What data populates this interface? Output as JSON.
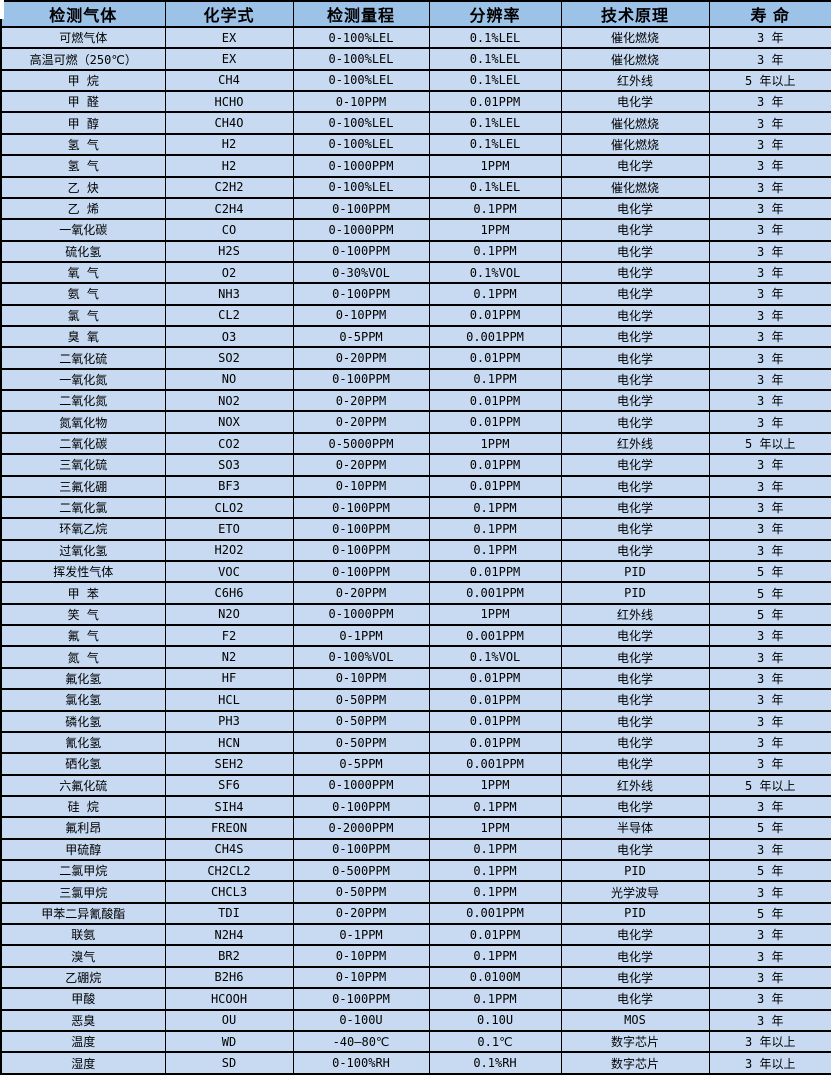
{
  "table": {
    "colors": {
      "header_bg": "#9CC2E8",
      "row_bg": "#C7DAF2",
      "border": "#000000"
    },
    "columns": [
      "检测气体",
      "化学式",
      "检测量程",
      "分辨率",
      "技术原理",
      "寿 命"
    ],
    "rows": [
      {
        "gas": "可燃气体",
        "formula": "EX",
        "range": "0-100%LEL",
        "resolution": "0.1%LEL",
        "principle": "催化燃烧",
        "lifespan": "3 年"
      },
      {
        "gas": "高温可燃（250℃）",
        "formula": "EX",
        "range": "0-100%LEL",
        "resolution": "0.1%LEL",
        "principle": "催化燃烧",
        "lifespan": "3 年"
      },
      {
        "gas": "甲 烷",
        "formula": "CH4",
        "range": "0-100%LEL",
        "resolution": "0.1%LEL",
        "principle": "红外线",
        "lifespan": "5 年以上"
      },
      {
        "gas": "甲 醛",
        "formula": "HCHO",
        "range": "0-10PPM",
        "resolution": "0.01PPM",
        "principle": "电化学",
        "lifespan": "3 年"
      },
      {
        "gas": "甲 醇",
        "formula": "CH4O",
        "range": "0-100%LEL",
        "resolution": "0.1%LEL",
        "principle": "催化燃烧",
        "lifespan": "3 年"
      },
      {
        "gas": "氢 气",
        "formula": "H2",
        "range": "0-100%LEL",
        "resolution": "0.1%LEL",
        "principle": "催化燃烧",
        "lifespan": "3 年"
      },
      {
        "gas": "氢 气",
        "formula": "H2",
        "range": "0-1000PPM",
        "resolution": "1PPM",
        "principle": "电化学",
        "lifespan": "3 年"
      },
      {
        "gas": "乙 炔",
        "formula": "C2H2",
        "range": "0-100%LEL",
        "resolution": "0.1%LEL",
        "principle": "催化燃烧",
        "lifespan": "3 年"
      },
      {
        "gas": "乙 烯",
        "formula": "C2H4",
        "range": "0-100PPM",
        "resolution": "0.1PPM",
        "principle": "电化学",
        "lifespan": "3 年"
      },
      {
        "gas": "一氧化碳",
        "formula": "CO",
        "range": "0-1000PPM",
        "resolution": "1PPM",
        "principle": "电化学",
        "lifespan": "3 年"
      },
      {
        "gas": "硫化氢",
        "formula": "H2S",
        "range": "0-100PPM",
        "resolution": "0.1PPM",
        "principle": "电化学",
        "lifespan": "3 年"
      },
      {
        "gas": "氧 气",
        "formula": "O2",
        "range": "0-30%VOL",
        "resolution": "0.1%VOL",
        "principle": "电化学",
        "lifespan": "3 年"
      },
      {
        "gas": "氨 气",
        "formula": "NH3",
        "range": "0-100PPM",
        "resolution": "0.1PPM",
        "principle": "电化学",
        "lifespan": "3 年"
      },
      {
        "gas": "氯 气",
        "formula": "CL2",
        "range": "0-10PPM",
        "resolution": "0.01PPM",
        "principle": "电化学",
        "lifespan": "3 年"
      },
      {
        "gas": "臭 氧",
        "formula": "O3",
        "range": "0-5PPM",
        "resolution": "0.001PPM",
        "principle": "电化学",
        "lifespan": "3 年"
      },
      {
        "gas": "二氧化硫",
        "formula": "SO2",
        "range": "0-20PPM",
        "resolution": "0.01PPM",
        "principle": "电化学",
        "lifespan": "3 年"
      },
      {
        "gas": "一氧化氮",
        "formula": "NO",
        "range": "0-100PPM",
        "resolution": "0.1PPM",
        "principle": "电化学",
        "lifespan": "3 年"
      },
      {
        "gas": "二氧化氮",
        "formula": "NO2",
        "range": "0-20PPM",
        "resolution": "0.01PPM",
        "principle": "电化学",
        "lifespan": "3 年"
      },
      {
        "gas": "氮氧化物",
        "formula": "NOX",
        "range": "0-20PPM",
        "resolution": "0.01PPM",
        "principle": "电化学",
        "lifespan": "3 年"
      },
      {
        "gas": "二氧化碳",
        "formula": "CO2",
        "range": "0-5000PPM",
        "resolution": "1PPM",
        "principle": "红外线",
        "lifespan": "5 年以上"
      },
      {
        "gas": "三氧化硫",
        "formula": "SO3",
        "range": "0-20PPM",
        "resolution": "0.01PPM",
        "principle": "电化学",
        "lifespan": "3 年"
      },
      {
        "gas": "三氟化硼",
        "formula": "BF3",
        "range": "0-10PPM",
        "resolution": "0.01PPM",
        "principle": "电化学",
        "lifespan": "3 年"
      },
      {
        "gas": "二氧化氯",
        "formula": "CLO2",
        "range": "0-100PPM",
        "resolution": "0.1PPM",
        "principle": "电化学",
        "lifespan": "3 年"
      },
      {
        "gas": "环氧乙烷",
        "formula": "ETO",
        "range": "0-100PPM",
        "resolution": "0.1PPM",
        "principle": "电化学",
        "lifespan": "3 年"
      },
      {
        "gas": "过氧化氢",
        "formula": "H2O2",
        "range": "0-100PPM",
        "resolution": "0.1PPM",
        "principle": "电化学",
        "lifespan": "3 年"
      },
      {
        "gas": "挥发性气体",
        "formula": "VOC",
        "range": "0-100PPM",
        "resolution": "0.01PPM",
        "principle": "PID",
        "lifespan": "5 年"
      },
      {
        "gas": "甲 苯",
        "formula": "C6H6",
        "range": "0-20PPM",
        "resolution": "0.001PPM",
        "principle": "PID",
        "lifespan": "5 年"
      },
      {
        "gas": "笑 气",
        "formula": "N2O",
        "range": "0-1000PPM",
        "resolution": "1PPM",
        "principle": "红外线",
        "lifespan": "5 年"
      },
      {
        "gas": "氟 气",
        "formula": "F2",
        "range": "0-1PPM",
        "resolution": "0.001PPM",
        "principle": "电化学",
        "lifespan": "3 年"
      },
      {
        "gas": "氮 气",
        "formula": "N2",
        "range": "0-100%VOL",
        "resolution": "0.1%VOL",
        "principle": "电化学",
        "lifespan": "3 年"
      },
      {
        "gas": "氟化氢",
        "formula": "HF",
        "range": "0-10PPM",
        "resolution": "0.01PPM",
        "principle": "电化学",
        "lifespan": "3 年"
      },
      {
        "gas": "氯化氢",
        "formula": "HCL",
        "range": "0-50PPM",
        "resolution": "0.01PPM",
        "principle": "电化学",
        "lifespan": "3 年"
      },
      {
        "gas": "磷化氢",
        "formula": "PH3",
        "range": "0-50PPM",
        "resolution": "0.01PPM",
        "principle": "电化学",
        "lifespan": "3 年"
      },
      {
        "gas": "氰化氢",
        "formula": "HCN",
        "range": "0-50PPM",
        "resolution": "0.01PPM",
        "principle": "电化学",
        "lifespan": "3 年"
      },
      {
        "gas": "硒化氢",
        "formula": "SEH2",
        "range": "0-5PPM",
        "resolution": "0.001PPM",
        "principle": "电化学",
        "lifespan": "3 年"
      },
      {
        "gas": "六氟化硫",
        "formula": "SF6",
        "range": "0-1000PPM",
        "resolution": "1PPM",
        "principle": "红外线",
        "lifespan": "5 年以上"
      },
      {
        "gas": "硅 烷",
        "formula": "SIH4",
        "range": "0-100PPM",
        "resolution": "0.1PPM",
        "principle": "电化学",
        "lifespan": "3 年"
      },
      {
        "gas": "氟利昂",
        "formula": "FREON",
        "range": "0-2000PPM",
        "resolution": "1PPM",
        "principle": "半导体",
        "lifespan": "5 年"
      },
      {
        "gas": "甲硫醇",
        "formula": "CH4S",
        "range": "0-100PPM",
        "resolution": "0.1PPM",
        "principle": "电化学",
        "lifespan": "3 年"
      },
      {
        "gas": "二氯甲烷",
        "formula": "CH2CL2",
        "range": "0-500PPM",
        "resolution": "0.1PPM",
        "principle": "PID",
        "lifespan": "5 年"
      },
      {
        "gas": "三氯甲烷",
        "formula": "CHCL3",
        "range": "0-50PPM",
        "resolution": "0.1PPM",
        "principle": "光学波导",
        "lifespan": "3 年"
      },
      {
        "gas": "甲苯二异氰酸酯",
        "formula": "TDI",
        "range": "0-20PPM",
        "resolution": "0.001PPM",
        "principle": "PID",
        "lifespan": "5 年"
      },
      {
        "gas": "联氨",
        "formula": "N2H4",
        "range": "0-1PPM",
        "resolution": "0.01PPM",
        "principle": "电化学",
        "lifespan": "3 年"
      },
      {
        "gas": "溴气",
        "formula": "BR2",
        "range": "0-10PPM",
        "resolution": "0.1PPM",
        "principle": "电化学",
        "lifespan": "3 年"
      },
      {
        "gas": "乙硼烷",
        "formula": "B2H6",
        "range": "0-10PPM",
        "resolution": "0.0100M",
        "principle": "电化学",
        "lifespan": "3 年"
      },
      {
        "gas": "甲酸",
        "formula": "HCOOH",
        "range": "0-100PPM",
        "resolution": "0.1PPM",
        "principle": "电化学",
        "lifespan": "3 年"
      },
      {
        "gas": "恶臭",
        "formula": "OU",
        "range": "0-100U",
        "resolution": "0.10U",
        "principle": "MOS",
        "lifespan": "3 年"
      },
      {
        "gas": "温度",
        "formula": "WD",
        "range": "-40—80℃",
        "resolution": "0.1℃",
        "principle": "数字芯片",
        "lifespan": "3 年以上"
      },
      {
        "gas": "湿度",
        "formula": "SD",
        "range": "0-100%RH",
        "resolution": "0.1%RH",
        "principle": "数字芯片",
        "lifespan": "3 年以上"
      }
    ]
  }
}
